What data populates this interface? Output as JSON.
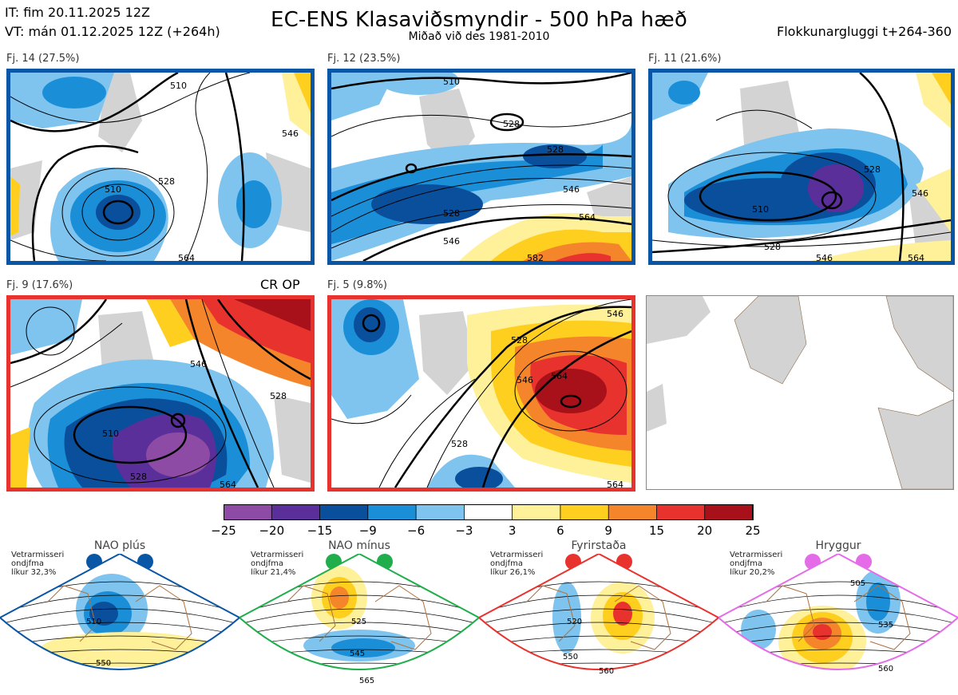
{
  "header": {
    "init_time": "IT: fim 20.11.2025 12Z",
    "valid_time": "VT: mán 01.12.2025 12Z  (+264h)",
    "title": "EC-ENS Klasaviðsmyndir - 500 hPa hæð",
    "subtitle": "Miðað við des 1981-2010",
    "window": "Flokkunargluggi t+264-360"
  },
  "clusters": [
    {
      "label": "Fj. 14 (27.5%)",
      "border": "blue",
      "contours": [
        "510",
        "528",
        "546",
        "564",
        "510"
      ]
    },
    {
      "label": "Fj. 12 (23.5%)",
      "border": "blue",
      "contours": [
        "510",
        "528",
        "528",
        "546",
        "564",
        "582",
        "546",
        "528"
      ]
    },
    {
      "label": "Fj. 11 (21.6%)",
      "border": "blue",
      "contours": [
        "510",
        "528",
        "546",
        "528",
        "546",
        "564"
      ]
    },
    {
      "label": "Fj. 9 (17.6%)",
      "border": "red",
      "contours": [
        "510",
        "528",
        "546",
        "564",
        "528"
      ]
    },
    {
      "label": "Fj. 5 (9.8%)",
      "border": "red",
      "contours": [
        "528",
        "528",
        "546",
        "564",
        "546",
        "564"
      ]
    }
  ],
  "cr_op": "CR OP",
  "colorbar": {
    "ticks": [
      "−25",
      "−20",
      "−15",
      "−9",
      "−6",
      "−3",
      "3",
      "6",
      "9",
      "15",
      "20",
      "25"
    ],
    "colors": [
      "#8e4ba6",
      "#5a2f9a",
      "#0a4f9c",
      "#1a8fd8",
      "#7ec4ef",
      "#ffffff",
      "#fff09a",
      "#ffcf1f",
      "#f5852b",
      "#e8322e",
      "#a8101a"
    ]
  },
  "regimes": [
    {
      "name": "NAO plús",
      "note": [
        "Vetrarmisseri",
        "ondjfma",
        "líkur 32,3%"
      ],
      "color": "#0a56a6",
      "contours": [
        "510",
        "550"
      ]
    },
    {
      "name": "NAO mínus",
      "note": [
        "Vetrarmisseri",
        "ondjfma",
        "líkur 21,4%"
      ],
      "color": "#1fae4b",
      "contours": [
        "525",
        "545",
        "565"
      ]
    },
    {
      "name": "Fyrirstaða",
      "note": [
        "Vetrarmisseri",
        "ondjfma",
        "líkur 26,1%"
      ],
      "color": "#e8322e",
      "contours": [
        "520",
        "550",
        "560"
      ]
    },
    {
      "name": "Hryggur",
      "note": [
        "Vetrarmisseri",
        "ondjfma",
        "líkur 20,2%"
      ],
      "color": "#e56ce8",
      "contours": [
        "505",
        "535",
        "560"
      ]
    }
  ]
}
